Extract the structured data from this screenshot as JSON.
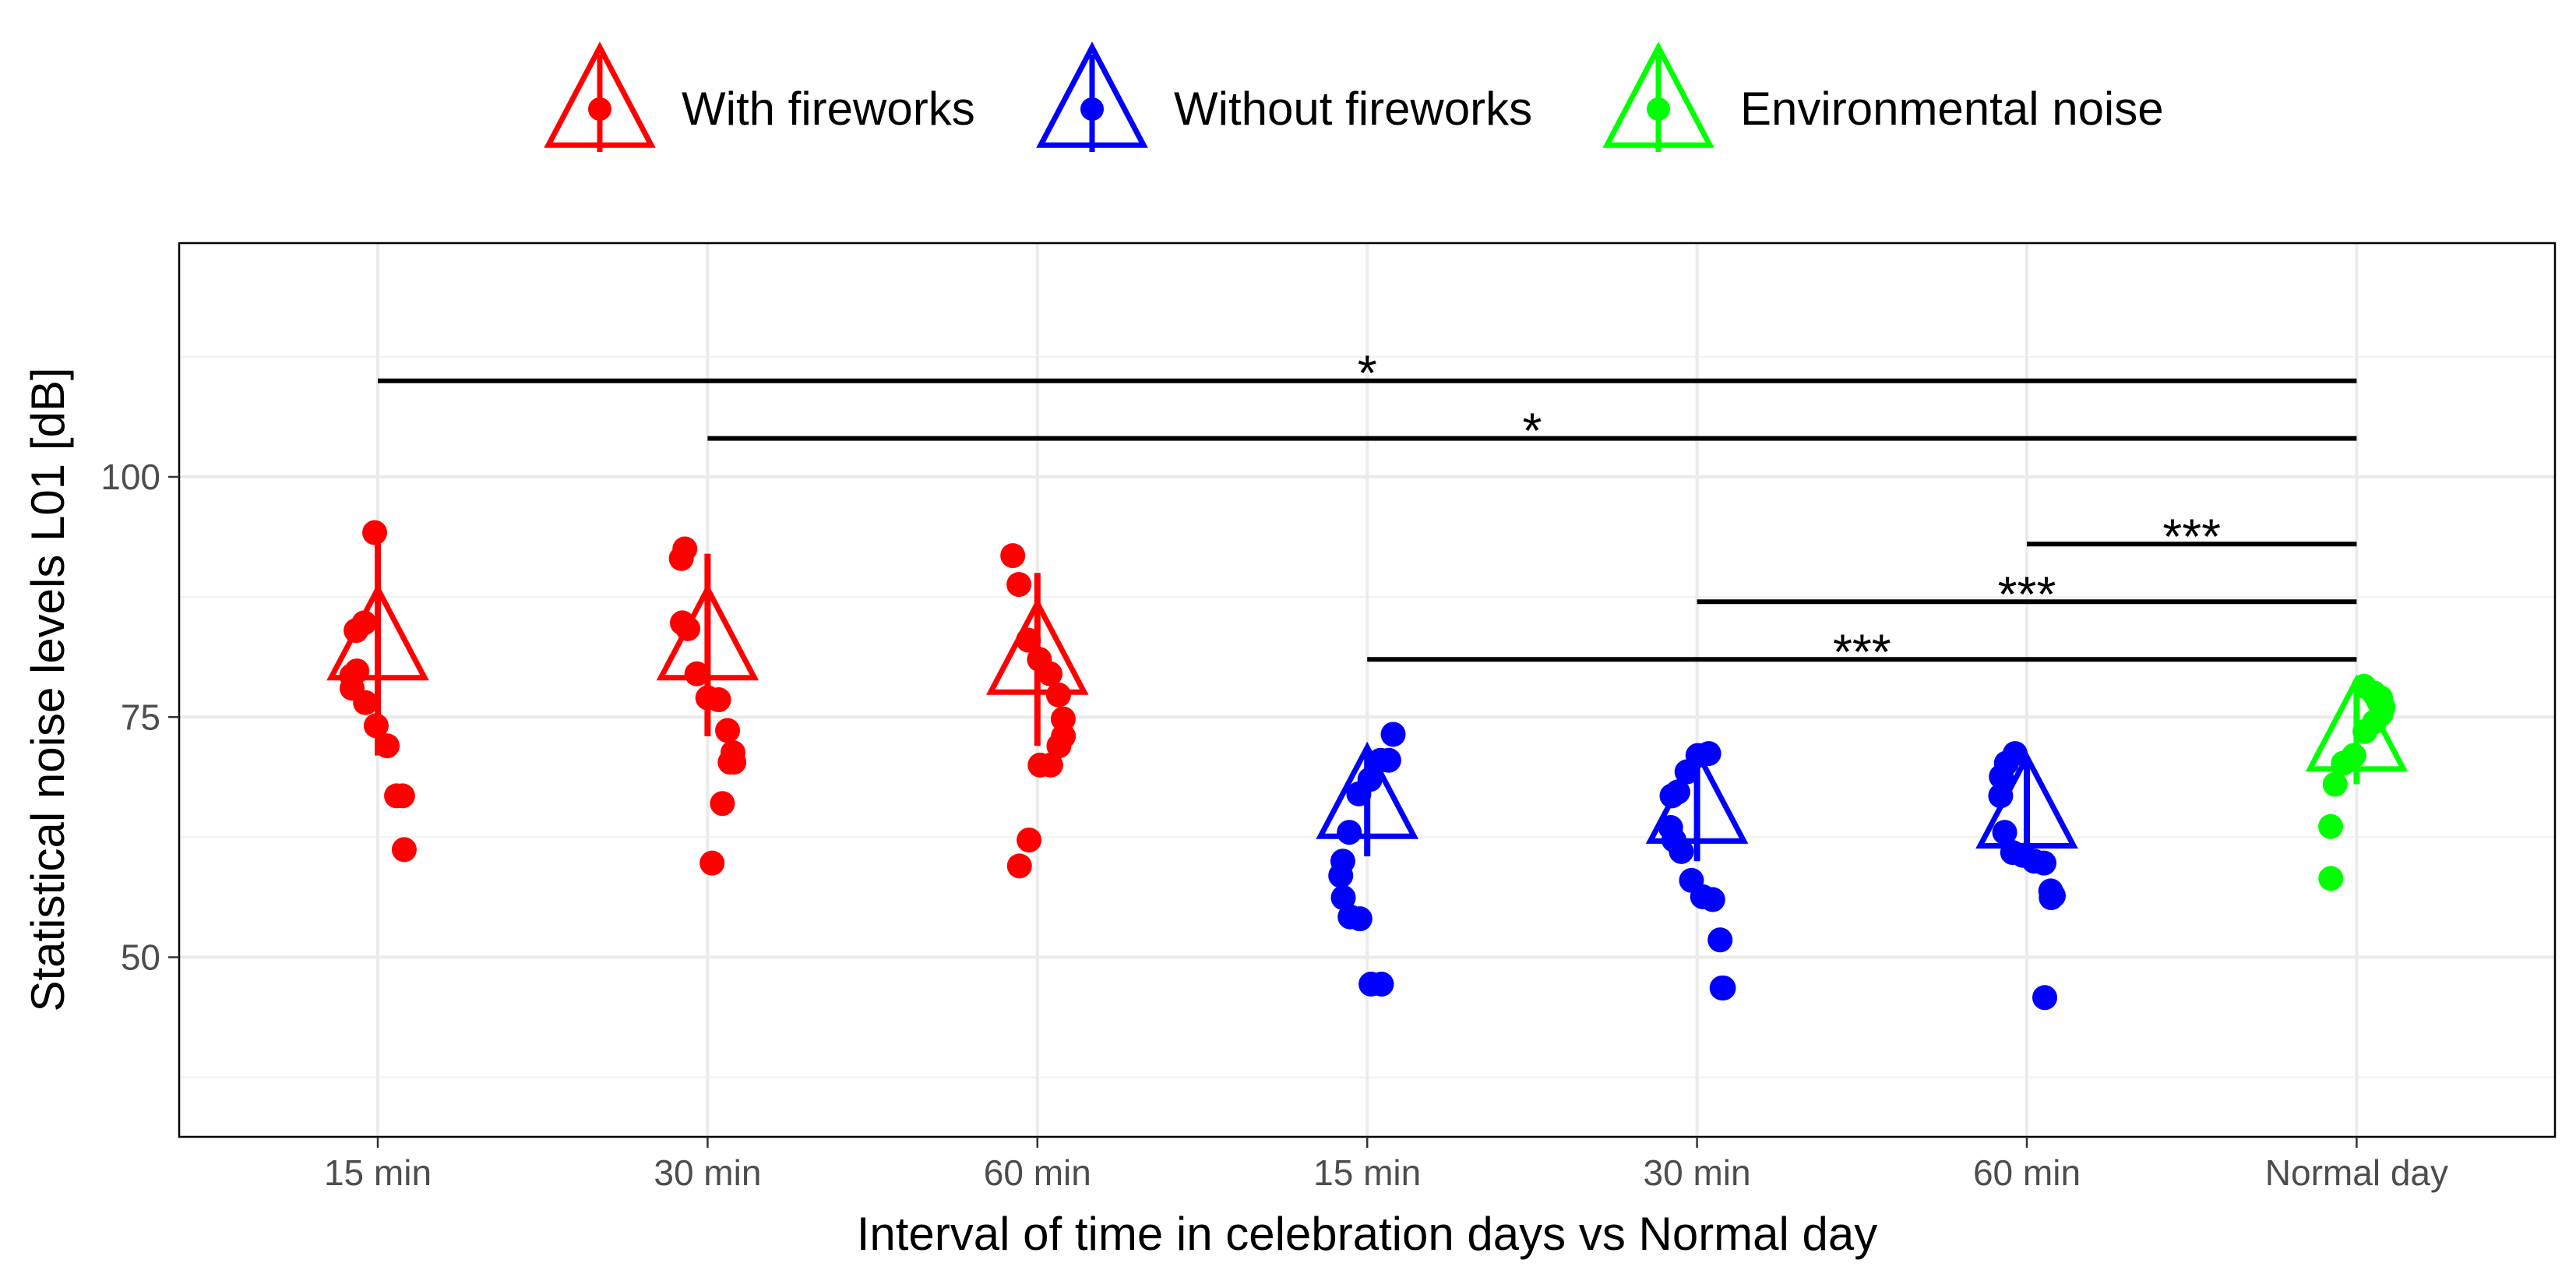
{
  "chart_data": {
    "type": "scatter",
    "xlabel": "Interval of time in celebration days vs Normal day",
    "ylabel": "Statistical noise levels L01 [dB]",
    "categories": [
      "15 min",
      "30 min",
      "60 min",
      "15 min",
      "30 min",
      "60 min",
      "Normal day"
    ],
    "ylim": [
      30,
      122
    ],
    "yticks": [
      50,
      75,
      100
    ],
    "grid": true,
    "legend_position": "top",
    "series": [
      {
        "name": "With fireworks",
        "color": "#ff0000",
        "groups": [
          {
            "category_index": 0,
            "mean": 82.5,
            "sd": 11.5,
            "points": [
              94.2,
              84.8,
              84.0,
              79.3,
              78.0,
              79.8,
              76.5,
              74.1,
              72.0,
              66.8,
              66.8,
              61.2
            ]
          },
          {
            "category_index": 1,
            "mean": 82.5,
            "sd": 9.5,
            "points": [
              92.5,
              91.5,
              84.8,
              84.2,
              79.5,
              77.0,
              76.8,
              73.6,
              71.3,
              70.3,
              70.3,
              66.0,
              59.8
            ]
          },
          {
            "category_index": 2,
            "mean": 81.0,
            "sd": 9.0,
            "points": [
              91.8,
              88.8,
              83.0,
              81.0,
              79.5,
              77.3,
              74.8,
              73.0,
              72.0,
              70.0,
              70.0,
              62.2,
              59.5
            ]
          }
        ]
      },
      {
        "name": "Without fireworks",
        "color": "#0000ff",
        "groups": [
          {
            "category_index": 3,
            "mean": 66.0,
            "sd": 5.5,
            "points": [
              73.2,
              70.5,
              70.5,
              68.5,
              67.0,
              63.0,
              60.0,
              58.5,
              56.2,
              54.2,
              54.0,
              47.2,
              47.2
            ]
          },
          {
            "category_index": 4,
            "mean": 65.5,
            "sd": 5.5,
            "points": [
              71.2,
              71.0,
              69.3,
              67.2,
              66.8,
              63.5,
              62.2,
              61.0,
              58.0,
              56.3,
              56.0,
              51.8,
              46.8,
              46.8
            ]
          },
          {
            "category_index": 5,
            "mean": 65.0,
            "sd": 5.5,
            "points": [
              71.2,
              70.2,
              68.8,
              66.8,
              63.0,
              60.9,
              60.6,
              60.0,
              59.8,
              56.9,
              56.4,
              56.2,
              45.8
            ]
          }
        ]
      },
      {
        "name": "Environmental noise",
        "color": "#00ff00",
        "groups": [
          {
            "category_index": 6,
            "mean": 73.0,
            "sd": 5.0,
            "points": [
              78.2,
              77.5,
              77.0,
              76.0,
              75.3,
              74.5,
              73.5,
              71.0,
              70.2,
              68.0,
              63.6,
              58.2
            ]
          }
        ]
      }
    ],
    "significance": [
      {
        "from_index": 0,
        "to_index": 6,
        "y": 110,
        "label": "*"
      },
      {
        "from_index": 1,
        "to_index": 6,
        "y": 104,
        "label": "*"
      },
      {
        "from_index": 5,
        "to_index": 6,
        "y": 93,
        "label": "***"
      },
      {
        "from_index": 4,
        "to_index": 6,
        "y": 87,
        "label": "***"
      },
      {
        "from_index": 3,
        "to_index": 6,
        "y": 81,
        "label": "***"
      }
    ]
  }
}
